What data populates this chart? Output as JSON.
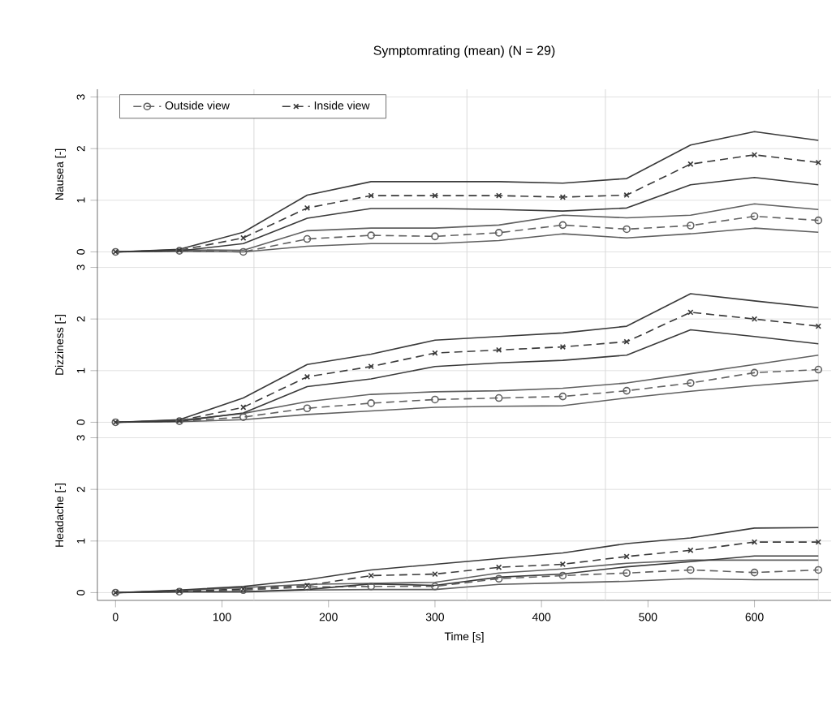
{
  "chart_data": [
    {
      "type": "line",
      "title": "Symptomrating (mean)  (N = 29)",
      "ylabel": "Nausea [-]",
      "x": [
        0,
        60,
        120,
        180,
        240,
        300,
        360,
        420,
        480,
        540,
        600,
        660
      ],
      "xlim": [
        -17,
        672
      ],
      "xticks": [
        0,
        100,
        200,
        300,
        400,
        500,
        600
      ],
      "ylim": [
        -0.15,
        3.15
      ],
      "yticks": [
        0,
        1,
        2,
        3
      ],
      "grid": "y",
      "legend": "top left",
      "tick_labels": "y",
      "ref_lines": [
        {
          "axis": "x",
          "value": 130,
          "color": "#d9d9d9"
        },
        {
          "axis": "x",
          "value": 330,
          "color": "#d9d9d9"
        },
        {
          "axis": "x",
          "value": 460,
          "color": "#d9d9d9"
        },
        {
          "axis": "x",
          "value": 660,
          "color": "#d9d9d9"
        }
      ],
      "series": [
        {
          "name": "Outside view",
          "color": "#606060",
          "marker": "circle",
          "line_style": "dashed",
          "values": [
            0,
            0.02,
            0,
            0.25,
            0.32,
            0.3,
            0.37,
            0.52,
            0.44,
            0.51,
            0.69,
            0.61
          ]
        },
        {
          "name": "Inside view",
          "color": "#3a3a3a",
          "marker": "cross",
          "line_style": "dashed",
          "values": [
            0,
            0.03,
            0.27,
            0.85,
            1.09,
            1.09,
            1.09,
            1.06,
            1.1,
            1.7,
            1.88,
            1.73
          ]
        },
        {
          "color": "#606060",
          "marker": "none",
          "line_style": "solid",
          "values": [
            0,
            0.01,
            0,
            0.11,
            0.16,
            0.16,
            0.22,
            0.35,
            0.27,
            0.35,
            0.46,
            0.38
          ]
        },
        {
          "color": "#606060",
          "marker": "none",
          "line_style": "solid",
          "values": [
            0,
            0.04,
            0.03,
            0.41,
            0.46,
            0.46,
            0.52,
            0.71,
            0.66,
            0.71,
            0.93,
            0.82
          ]
        },
        {
          "color": "#3a3a3a",
          "marker": "none",
          "line_style": "solid",
          "values": [
            0,
            0.02,
            0.16,
            0.65,
            0.84,
            0.84,
            0.82,
            0.79,
            0.85,
            1.3,
            1.44,
            1.3
          ]
        },
        {
          "color": "#3a3a3a",
          "marker": "none",
          "line_style": "solid",
          "values": [
            0,
            0.05,
            0.38,
            1.1,
            1.36,
            1.36,
            1.36,
            1.33,
            1.42,
            2.07,
            2.33,
            2.16
          ]
        }
      ]
    },
    {
      "type": "line",
      "ylabel": "Dizziness [-]",
      "x": [
        0,
        60,
        120,
        180,
        240,
        300,
        360,
        420,
        480,
        540,
        600,
        660
      ],
      "xlim": [
        -17,
        672
      ],
      "xticks": [
        0,
        100,
        200,
        300,
        400,
        500,
        600
      ],
      "ylim": [
        -0.15,
        3.15
      ],
      "yticks": [
        0,
        1,
        2,
        3
      ],
      "grid": "y",
      "tick_labels": "y",
      "ref_lines": [
        {
          "axis": "x",
          "value": 130,
          "color": "#d9d9d9"
        },
        {
          "axis": "x",
          "value": 330,
          "color": "#d9d9d9"
        },
        {
          "axis": "x",
          "value": 460,
          "color": "#d9d9d9"
        },
        {
          "axis": "x",
          "value": 660,
          "color": "#d9d9d9"
        }
      ],
      "series": [
        {
          "color": "#606060",
          "marker": "circle",
          "line_style": "dashed",
          "values": [
            0,
            0.02,
            0.1,
            0.27,
            0.37,
            0.44,
            0.47,
            0.5,
            0.61,
            0.76,
            0.96,
            1.02
          ]
        },
        {
          "color": "#3a3a3a",
          "marker": "cross",
          "line_style": "dashed",
          "values": [
            0,
            0.03,
            0.29,
            0.88,
            1.08,
            1.34,
            1.4,
            1.46,
            1.56,
            2.13,
            2.0,
            1.86
          ]
        },
        {
          "color": "#606060",
          "marker": "none",
          "line_style": "solid",
          "values": [
            0,
            0.01,
            0.05,
            0.15,
            0.22,
            0.29,
            0.31,
            0.32,
            0.47,
            0.6,
            0.71,
            0.81
          ]
        },
        {
          "color": "#606060",
          "marker": "none",
          "line_style": "solid",
          "values": [
            0,
            0.04,
            0.17,
            0.4,
            0.54,
            0.59,
            0.61,
            0.66,
            0.76,
            0.94,
            1.12,
            1.3
          ]
        },
        {
          "color": "#3a3a3a",
          "marker": "none",
          "line_style": "solid",
          "values": [
            0,
            0.02,
            0.18,
            0.69,
            0.84,
            1.08,
            1.15,
            1.2,
            1.3,
            1.79,
            1.66,
            1.52
          ]
        },
        {
          "color": "#3a3a3a",
          "marker": "none",
          "line_style": "solid",
          "values": [
            0,
            0.05,
            0.47,
            1.12,
            1.32,
            1.59,
            1.66,
            1.73,
            1.86,
            2.49,
            2.35,
            2.22
          ]
        }
      ]
    },
    {
      "type": "line",
      "ylabel": "Headache [-]",
      "xlabel": "Time [s]",
      "x": [
        0,
        60,
        120,
        180,
        240,
        300,
        360,
        420,
        480,
        540,
        600,
        660
      ],
      "xlim": [
        -17,
        672
      ],
      "xticks": [
        0,
        100,
        200,
        300,
        400,
        500,
        600
      ],
      "ylim": [
        -0.15,
        3.15
      ],
      "yticks": [
        0,
        1,
        2,
        3
      ],
      "grid": "y",
      "ref_lines": [
        {
          "axis": "x",
          "value": 130,
          "color": "#d9d9d9"
        },
        {
          "axis": "x",
          "value": 330,
          "color": "#d9d9d9"
        },
        {
          "axis": "x",
          "value": 460,
          "color": "#d9d9d9"
        },
        {
          "axis": "x",
          "value": 660,
          "color": "#d9d9d9"
        }
      ],
      "series": [
        {
          "color": "#606060",
          "marker": "circle",
          "line_style": "dashed",
          "values": [
            0,
            0.02,
            0.05,
            0.11,
            0.12,
            0.12,
            0.27,
            0.33,
            0.38,
            0.44,
            0.39,
            0.44
          ]
        },
        {
          "color": "#3a3a3a",
          "marker": "cross",
          "line_style": "dashed",
          "values": [
            0,
            0.03,
            0.07,
            0.14,
            0.33,
            0.36,
            0.49,
            0.55,
            0.7,
            0.82,
            0.98,
            0.98
          ]
        },
        {
          "color": "#606060",
          "marker": "none",
          "line_style": "solid",
          "values": [
            0,
            0.01,
            0.01,
            0.05,
            0.06,
            0.06,
            0.16,
            0.19,
            0.22,
            0.27,
            0.25,
            0.25
          ]
        },
        {
          "color": "#606060",
          "marker": "none",
          "line_style": "solid",
          "values": [
            0,
            0.04,
            0.1,
            0.16,
            0.18,
            0.2,
            0.38,
            0.46,
            0.57,
            0.63,
            0.63,
            0.63
          ]
        },
        {
          "color": "#3a3a3a",
          "marker": "none",
          "line_style": "solid",
          "values": [
            0,
            0.02,
            0.02,
            0.06,
            0.17,
            0.14,
            0.3,
            0.36,
            0.5,
            0.6,
            0.71,
            0.71
          ]
        },
        {
          "color": "#3a3a3a",
          "marker": "none",
          "line_style": "solid",
          "values": [
            0,
            0.05,
            0.12,
            0.25,
            0.44,
            0.55,
            0.66,
            0.77,
            0.95,
            1.06,
            1.25,
            1.26
          ]
        }
      ]
    }
  ]
}
